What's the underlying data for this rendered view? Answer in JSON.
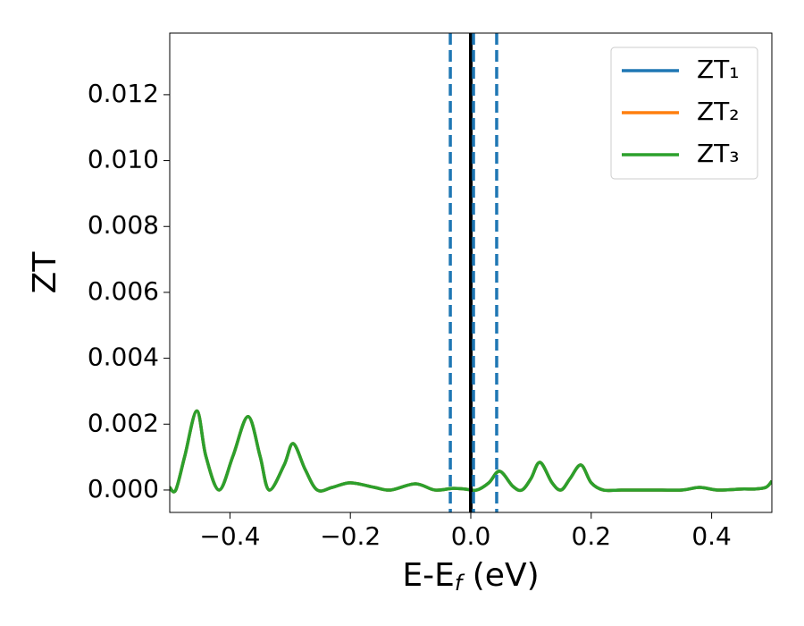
{
  "chart_data": {
    "type": "line",
    "xlabel": [
      "E-E",
      "f",
      " (eV)"
    ],
    "ylabel": "ZT",
    "x": [
      -0.5,
      -0.49,
      -0.475,
      -0.455,
      -0.44,
      -0.418,
      -0.395,
      -0.37,
      -0.35,
      -0.335,
      -0.31,
      -0.295,
      -0.275,
      -0.255,
      -0.23,
      -0.2,
      -0.16,
      -0.133,
      -0.092,
      -0.06,
      -0.03,
      -0.01,
      0.01,
      0.03,
      0.048,
      0.07,
      0.085,
      0.1,
      0.115,
      0.135,
      0.15,
      0.165,
      0.183,
      0.2,
      0.22,
      0.25,
      0.3,
      0.35,
      0.38,
      0.41,
      0.45,
      0.47,
      0.49,
      0.5
    ],
    "series": [
      {
        "name": "ZT₁",
        "color": "#1f77b4",
        "values": [
          8e-05,
          0,
          0.00103,
          0.0024,
          0.00103,
          0,
          0.00103,
          0.00223,
          0.00103,
          0,
          0.00076,
          0.00141,
          0.00062,
          0,
          8e-05,
          0.00022,
          8e-05,
          0,
          0.00019,
          0,
          5e-05,
          3e-05,
          0,
          0.00022,
          0.00057,
          0.00011,
          0,
          0.00035,
          0.00084,
          0.00022,
          0,
          0.00035,
          0.00076,
          0.00022,
          0,
          0,
          0,
          0,
          8e-05,
          0,
          3e-05,
          3e-05,
          8e-05,
          0.00027
        ]
      },
      {
        "name": "ZT₂",
        "color": "#ff7f0e",
        "values": [
          8e-05,
          0,
          0.00103,
          0.0024,
          0.00103,
          0,
          0.00103,
          0.00223,
          0.00103,
          0,
          0.00076,
          0.00141,
          0.00062,
          0,
          8e-05,
          0.00022,
          8e-05,
          0,
          0.00019,
          0,
          5e-05,
          3e-05,
          0,
          0.00022,
          0.00057,
          0.00011,
          0,
          0.00035,
          0.00084,
          0.00022,
          0,
          0.00035,
          0.00076,
          0.00022,
          0,
          0,
          0,
          0,
          8e-05,
          0,
          3e-05,
          3e-05,
          8e-05,
          0.00027
        ]
      },
      {
        "name": "ZT₃",
        "color": "#2ca02c",
        "values": [
          8e-05,
          0,
          0.00103,
          0.0024,
          0.00103,
          0,
          0.00103,
          0.00223,
          0.00103,
          0,
          0.00076,
          0.00141,
          0.00062,
          0,
          8e-05,
          0.00022,
          8e-05,
          0,
          0.00019,
          0,
          5e-05,
          3e-05,
          0,
          0.00022,
          0.00057,
          0.00011,
          0,
          0.00035,
          0.00084,
          0.00022,
          0,
          0.00035,
          0.00076,
          0.00022,
          0,
          0,
          0,
          0,
          8e-05,
          0,
          3e-05,
          3e-05,
          8e-05,
          0.00027
        ]
      }
    ],
    "vlines": [
      {
        "x": -0.034,
        "color": "#1f77b4",
        "style": "dashed"
      },
      {
        "x": 0,
        "color": "#000000",
        "style": "solid"
      },
      {
        "x": 0.0045,
        "color": "#1f77b4",
        "style": "dashed"
      },
      {
        "x": 0.043,
        "color": "#1f77b4",
        "style": "dashed"
      }
    ],
    "xlim": [
      -0.5,
      0.5
    ],
    "xticks": [
      {
        "value": -0.4,
        "label": "−0.4"
      },
      {
        "value": -0.2,
        "label": "−0.2"
      },
      {
        "value": 0,
        "label": "0.0"
      },
      0.2,
      0.4
    ],
    "ylim": [
      -0.00068,
      0.01387
    ],
    "yticks": [
      {
        "value": 0,
        "label": "0.000"
      },
      {
        "value": 0.002,
        "label": "0.002"
      },
      {
        "value": 0.004,
        "label": "0.004"
      },
      {
        "value": 0.006,
        "label": "0.006"
      },
      {
        "value": 0.008,
        "label": "0.008"
      },
      {
        "value": 0.01,
        "label": "0.010"
      },
      {
        "value": 0.012,
        "label": "0.012"
      }
    ],
    "grid": false,
    "legend": "upper right"
  }
}
